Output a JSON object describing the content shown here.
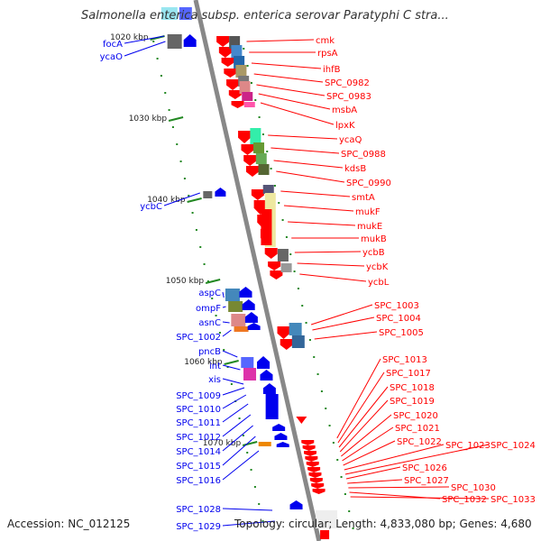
{
  "title": "Salmonella enterica subsp. enterica serovar Paratyphi C stra...",
  "footer": {
    "accession": "Accession: NC_012125",
    "topology": "Topology: circular; Length: 4,833,080 bp; Genes: 4,680"
  },
  "colors": {
    "forward": "#ff0000",
    "reverse": "#0000ee",
    "backbone": "#888888",
    "ticks": "#228822"
  },
  "scale_ticks": [
    "1020 kbp",
    "1030 kbp",
    "1040 kbp",
    "1050 kbp",
    "1060 kbp",
    "1070 kbp"
  ],
  "left_genes": [
    "focA",
    "ycaO",
    "ycbC",
    "aspC",
    "ompF",
    "asnC",
    "SPC_1002",
    "pncB",
    "int",
    "xis",
    "SPC_1009",
    "SPC_1010",
    "SPC_1011",
    "SPC_1012",
    "SPC_1014",
    "SPC_1015",
    "SPC_1016",
    "SPC_1028",
    "SPC_1029"
  ],
  "right_genes": [
    "cmk",
    "rpsA",
    "ihfB",
    "SPC_0982",
    "SPC_0983",
    "msbA",
    "lpxK",
    "ycaQ",
    "SPC_0988",
    "kdsB",
    "SPC_0990",
    "smtA",
    "mukF",
    "mukE",
    "mukB",
    "ycbB",
    "ycbK",
    "ycbL",
    "SPC_1003",
    "SPC_1004",
    "SPC_1005",
    "SPC_1013",
    "SPC_1017",
    "SPC_1018",
    "SPC_1019",
    "SPC_1020",
    "SPC_1021",
    "SPC_1022",
    "SPC_1023",
    "SPC_1024",
    "SPC_1026",
    "SPC_1027",
    "SPC_1030",
    "SPC_1032",
    "SPC_1033"
  ]
}
